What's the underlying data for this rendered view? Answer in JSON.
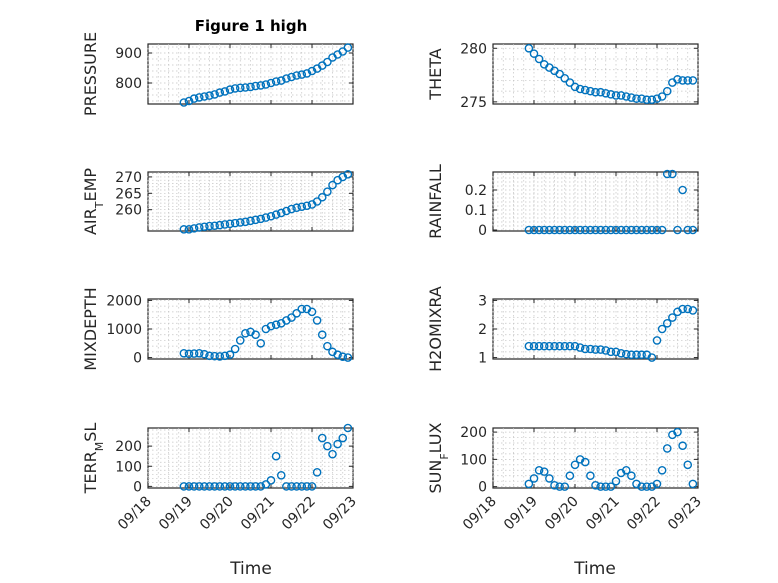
{
  "figure": {
    "title": "Figure 1 high",
    "xlabel": "Time",
    "x_tick_labels": [
      "09/18",
      "09/19",
      "09/20",
      "09/21",
      "09/22",
      "09/23"
    ],
    "marker_color": "#0072BD",
    "marker": "circle"
  },
  "chart_data": [
    {
      "type": "scatter",
      "title": "Figure 1 high",
      "ylabel": "PRESSURE",
      "xlim": [
        "09/18",
        "09/23"
      ],
      "ylim": [
        730,
        930
      ],
      "yticks": [
        800,
        900
      ],
      "grid": true,
      "x": [
        "09/18 21:00",
        "09/19 00:00",
        "09/19 03:00",
        "09/19 06:00",
        "09/19 09:00",
        "09/19 12:00",
        "09/19 15:00",
        "09/19 18:00",
        "09/19 21:00",
        "09/20 00:00",
        "09/20 03:00",
        "09/20 06:00",
        "09/20 09:00",
        "09/20 12:00",
        "09/20 15:00",
        "09/20 18:00",
        "09/20 21:00",
        "09/21 00:00",
        "09/21 03:00",
        "09/21 06:00",
        "09/21 09:00",
        "09/21 12:00",
        "09/21 15:00",
        "09/21 18:00",
        "09/21 21:00",
        "09/22 00:00",
        "09/22 03:00",
        "09/22 06:00",
        "09/22 09:00",
        "09/22 12:00",
        "09/22 15:00",
        "09/22 18:00",
        "09/22 21:00"
      ],
      "y": [
        735,
        740,
        748,
        752,
        755,
        758,
        762,
        768,
        772,
        778,
        782,
        784,
        785,
        787,
        790,
        792,
        795,
        800,
        805,
        808,
        815,
        820,
        825,
        828,
        832,
        840,
        848,
        858,
        870,
        885,
        895,
        905,
        918
      ]
    },
    {
      "type": "scatter",
      "ylabel": "THETA",
      "xlim": [
        "09/18",
        "09/23"
      ],
      "ylim": [
        274.8,
        280.4
      ],
      "yticks": [
        275,
        280
      ],
      "grid": true,
      "x": [
        "09/18 21:00",
        "09/19 00:00",
        "09/19 03:00",
        "09/19 06:00",
        "09/19 09:00",
        "09/19 12:00",
        "09/19 15:00",
        "09/19 18:00",
        "09/19 21:00",
        "09/20 00:00",
        "09/20 03:00",
        "09/20 06:00",
        "09/20 09:00",
        "09/20 12:00",
        "09/20 15:00",
        "09/20 18:00",
        "09/20 21:00",
        "09/21 00:00",
        "09/21 03:00",
        "09/21 06:00",
        "09/21 09:00",
        "09/21 12:00",
        "09/21 15:00",
        "09/21 18:00",
        "09/21 21:00",
        "09/22 00:00",
        "09/22 03:00",
        "09/22 06:00",
        "09/22 09:00",
        "09/22 12:00",
        "09/22 15:00",
        "09/22 18:00",
        "09/22 21:00"
      ],
      "y": [
        280.0,
        279.5,
        279.0,
        278.5,
        278.2,
        277.9,
        277.6,
        277.2,
        276.8,
        276.4,
        276.2,
        276.1,
        276.0,
        275.9,
        275.9,
        275.8,
        275.7,
        275.6,
        275.6,
        275.5,
        275.4,
        275.3,
        275.3,
        275.2,
        275.2,
        275.3,
        275.5,
        276.0,
        276.8,
        277.1,
        277.0,
        277.0,
        277.0
      ]
    },
    {
      "type": "scatter",
      "ylabel": "AIR_TEMP",
      "xlim": [
        "09/18",
        "09/23"
      ],
      "ylim": [
        253.5,
        271.5
      ],
      "yticks": [
        260,
        265,
        270
      ],
      "grid": true,
      "x": [
        "09/18 21:00",
        "09/19 00:00",
        "09/19 03:00",
        "09/19 06:00",
        "09/19 09:00",
        "09/19 12:00",
        "09/19 15:00",
        "09/19 18:00",
        "09/19 21:00",
        "09/20 00:00",
        "09/20 03:00",
        "09/20 06:00",
        "09/20 09:00",
        "09/20 12:00",
        "09/20 15:00",
        "09/20 18:00",
        "09/20 21:00",
        "09/21 00:00",
        "09/21 03:00",
        "09/21 06:00",
        "09/21 09:00",
        "09/21 12:00",
        "09/21 15:00",
        "09/21 18:00",
        "09/21 21:00",
        "09/22 00:00",
        "09/22 03:00",
        "09/22 06:00",
        "09/22 09:00",
        "09/22 12:00",
        "09/22 15:00",
        "09/22 18:00",
        "09/22 21:00"
      ],
      "y": [
        254.0,
        254.0,
        254.3,
        254.6,
        254.8,
        255.0,
        255.1,
        255.3,
        255.5,
        255.7,
        255.9,
        256.1,
        256.3,
        256.6,
        256.9,
        257.2,
        257.6,
        258.0,
        258.5,
        259.0,
        259.6,
        260.2,
        260.6,
        260.9,
        261.2,
        261.6,
        262.5,
        263.8,
        265.5,
        267.5,
        269.0,
        270.0,
        270.8
      ]
    },
    {
      "type": "scatter",
      "ylabel": "RAINFALL",
      "xlim": [
        "09/18",
        "09/23"
      ],
      "ylim": [
        -0.005,
        0.29
      ],
      "yticks": [
        0,
        0.1,
        0.2
      ],
      "grid": true,
      "x": [
        "09/18 21:00",
        "09/19 00:00",
        "09/19 03:00",
        "09/19 06:00",
        "09/19 09:00",
        "09/19 12:00",
        "09/19 15:00",
        "09/19 18:00",
        "09/19 21:00",
        "09/20 00:00",
        "09/20 03:00",
        "09/20 06:00",
        "09/20 09:00",
        "09/20 12:00",
        "09/20 15:00",
        "09/20 18:00",
        "09/20 21:00",
        "09/21 00:00",
        "09/21 03:00",
        "09/21 06:00",
        "09/21 09:00",
        "09/21 12:00",
        "09/21 15:00",
        "09/21 18:00",
        "09/21 21:00",
        "09/22 00:00",
        "09/22 03:00",
        "09/22 06:00",
        "09/22 09:00",
        "09/22 12:00",
        "09/22 15:00",
        "09/22 18:00",
        "09/22 21:00"
      ],
      "y": [
        0,
        0,
        0,
        0,
        0,
        0,
        0,
        0,
        0,
        0,
        0,
        0,
        0,
        0,
        0,
        0,
        0,
        0,
        0,
        0,
        0,
        0,
        0,
        0,
        0,
        0,
        0,
        0.28,
        0.28,
        0,
        0.2,
        0,
        0
      ]
    },
    {
      "type": "scatter",
      "ylabel": "MIXDEPTH",
      "xlim": [
        "09/18",
        "09/23"
      ],
      "ylim": [
        -50,
        2050
      ],
      "yticks": [
        0,
        1000,
        2000
      ],
      "grid": true,
      "x": [
        "09/18 21:00",
        "09/19 00:00",
        "09/19 03:00",
        "09/19 06:00",
        "09/19 09:00",
        "09/19 12:00",
        "09/19 15:00",
        "09/19 18:00",
        "09/19 21:00",
        "09/20 00:00",
        "09/20 03:00",
        "09/20 06:00",
        "09/20 09:00",
        "09/20 12:00",
        "09/20 15:00",
        "09/20 18:00",
        "09/20 21:00",
        "09/21 00:00",
        "09/21 03:00",
        "09/21 06:00",
        "09/21 09:00",
        "09/21 12:00",
        "09/21 15:00",
        "09/21 18:00",
        "09/21 21:00",
        "09/22 00:00",
        "09/22 03:00",
        "09/22 06:00",
        "09/22 09:00",
        "09/22 12:00",
        "09/22 15:00",
        "09/22 18:00",
        "09/22 21:00"
      ],
      "y": [
        150,
        130,
        140,
        150,
        120,
        60,
        50,
        40,
        60,
        100,
        300,
        600,
        850,
        900,
        800,
        500,
        1000,
        1100,
        1150,
        1200,
        1300,
        1400,
        1550,
        1700,
        1700,
        1600,
        1300,
        800,
        400,
        200,
        100,
        30,
        0
      ]
    },
    {
      "type": "scatter",
      "ylabel": "H2OMIXRA",
      "xlim": [
        "09/18",
        "09/23"
      ],
      "ylim": [
        0.95,
        3.05
      ],
      "yticks": [
        1,
        2,
        3
      ],
      "grid": true,
      "x": [
        "09/18 21:00",
        "09/19 00:00",
        "09/19 03:00",
        "09/19 06:00",
        "09/19 09:00",
        "09/19 12:00",
        "09/19 15:00",
        "09/19 18:00",
        "09/19 21:00",
        "09/20 00:00",
        "09/20 03:00",
        "09/20 06:00",
        "09/20 09:00",
        "09/20 12:00",
        "09/20 15:00",
        "09/20 18:00",
        "09/20 21:00",
        "09/21 00:00",
        "09/21 03:00",
        "09/21 06:00",
        "09/21 09:00",
        "09/21 12:00",
        "09/21 15:00",
        "09/21 18:00",
        "09/21 21:00",
        "09/22 00:00",
        "09/22 03:00",
        "09/22 06:00",
        "09/22 09:00",
        "09/22 12:00",
        "09/22 15:00",
        "09/22 18:00",
        "09/22 21:00"
      ],
      "y": [
        1.4,
        1.4,
        1.4,
        1.4,
        1.4,
        1.4,
        1.4,
        1.4,
        1.4,
        1.4,
        1.35,
        1.3,
        1.3,
        1.28,
        1.28,
        1.25,
        1.2,
        1.2,
        1.15,
        1.12,
        1.1,
        1.1,
        1.1,
        1.1,
        1.0,
        1.6,
        2.0,
        2.2,
        2.4,
        2.6,
        2.7,
        2.7,
        2.65
      ]
    },
    {
      "type": "scatter",
      "ylabel": "TERR_MSL",
      "xlim": [
        "09/18",
        "09/23"
      ],
      "ylim": [
        -8,
        290
      ],
      "yticks": [
        0,
        100,
        200
      ],
      "grid": true,
      "x": [
        "09/18 21:00",
        "09/19 00:00",
        "09/19 03:00",
        "09/19 06:00",
        "09/19 09:00",
        "09/19 12:00",
        "09/19 15:00",
        "09/19 18:00",
        "09/19 21:00",
        "09/20 00:00",
        "09/20 03:00",
        "09/20 06:00",
        "09/20 09:00",
        "09/20 12:00",
        "09/20 15:00",
        "09/20 18:00",
        "09/20 21:00",
        "09/21 00:00",
        "09/21 03:00",
        "09/21 06:00",
        "09/21 09:00",
        "09/21 12:00",
        "09/21 15:00",
        "09/21 18:00",
        "09/21 21:00",
        "09/22 00:00",
        "09/22 03:00",
        "09/22 06:00",
        "09/22 09:00",
        "09/22 12:00",
        "09/22 15:00",
        "09/22 18:00",
        "09/22 21:00"
      ],
      "y": [
        0,
        0,
        0,
        0,
        0,
        0,
        0,
        0,
        0,
        0,
        0,
        0,
        0,
        0,
        0,
        0,
        10,
        30,
        150,
        55,
        0,
        0,
        0,
        0,
        0,
        0,
        70,
        240,
        200,
        160,
        210,
        240,
        290
      ]
    },
    {
      "type": "scatter",
      "ylabel": "SUN_FLUX",
      "xlim": [
        "09/18",
        "09/23"
      ],
      "ylim": [
        -5,
        215
      ],
      "yticks": [
        0,
        100,
        200
      ],
      "grid": true,
      "x": [
        "09/18 21:00",
        "09/19 00:00",
        "09/19 03:00",
        "09/19 06:00",
        "09/19 09:00",
        "09/19 12:00",
        "09/19 15:00",
        "09/19 18:00",
        "09/19 21:00",
        "09/20 00:00",
        "09/20 03:00",
        "09/20 06:00",
        "09/20 09:00",
        "09/20 12:00",
        "09/20 15:00",
        "09/20 18:00",
        "09/20 21:00",
        "09/21 00:00",
        "09/21 03:00",
        "09/21 06:00",
        "09/21 09:00",
        "09/21 12:00",
        "09/21 15:00",
        "09/21 18:00",
        "09/21 21:00",
        "09/22 00:00",
        "09/22 03:00",
        "09/22 06:00",
        "09/22 09:00",
        "09/22 12:00",
        "09/22 15:00",
        "09/22 18:00",
        "09/22 21:00"
      ],
      "y": [
        10,
        30,
        60,
        55,
        30,
        5,
        0,
        0,
        40,
        80,
        100,
        90,
        40,
        5,
        0,
        0,
        0,
        20,
        50,
        60,
        40,
        10,
        0,
        0,
        0,
        10,
        60,
        140,
        190,
        200,
        150,
        80,
        10
      ]
    }
  ]
}
